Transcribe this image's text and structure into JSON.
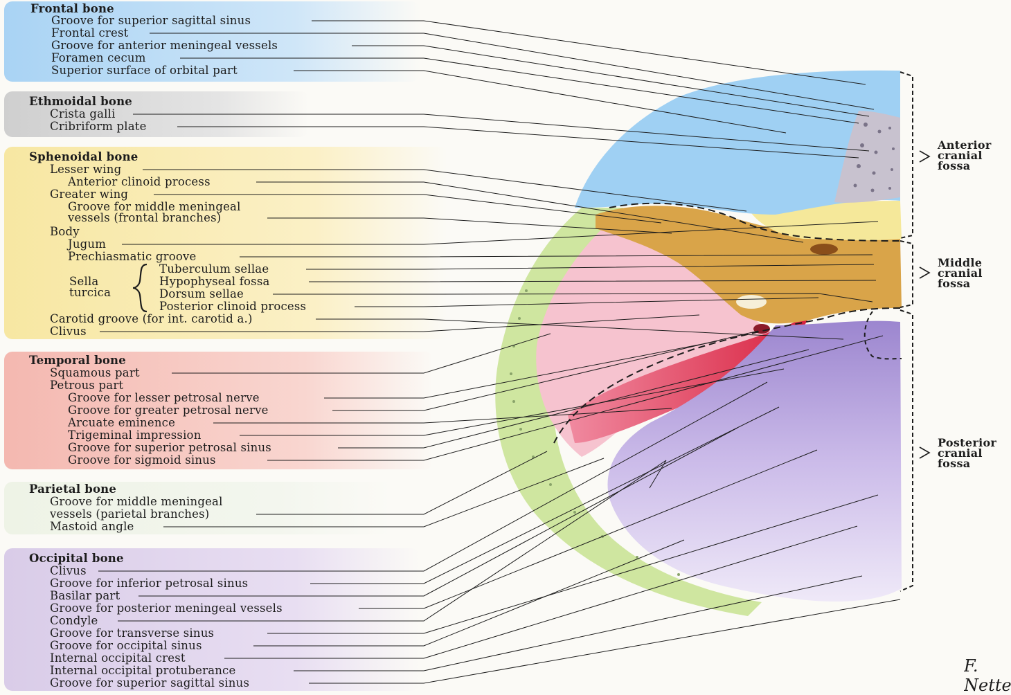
{
  "groups": {
    "frontal": {
      "title": "Frontal bone",
      "items": [
        "Groove for superior sagittal sinus",
        "Frontal crest",
        "Groove for anterior meningeal vessels",
        "Foramen cecum",
        "Superior surface of orbital part"
      ]
    },
    "ethmoidal": {
      "title": "Ethmoidal bone",
      "items": [
        "Crista galli",
        "Cribriform plate"
      ]
    },
    "sphenoidal": {
      "title": "Sphenoidal bone",
      "items": [
        "Lesser wing",
        "Anterior clinoid process",
        "Greater wing",
        "Groove for middle meningeal",
        "vessels (frontal branches)",
        "Body",
        "Jugum",
        "Prechiasmatic groove",
        "Carotid groove (for int. carotid a.)",
        "Clivus"
      ],
      "sella_label_1": "Sella",
      "sella_label_2": "turcica",
      "sella_items": [
        "Tuberculum sellae",
        "Hypophyseal fossa",
        "Dorsum sellae",
        "Posterior clinoid process"
      ]
    },
    "temporal": {
      "title": "Temporal bone",
      "items": [
        "Squamous part",
        "Petrous part",
        "Groove for lesser petrosal nerve",
        "Groove for greater petrosal nerve",
        "Arcuate eminence",
        "Trigeminal impression",
        "Groove for superior petrosal sinus",
        "Groove for sigmoid sinus"
      ]
    },
    "parietal": {
      "title": "Parietal bone",
      "items": [
        "Groove for middle meningeal",
        "vessels (parietal branches)",
        "Mastoid angle"
      ]
    },
    "occipital": {
      "title": "Occipital bone",
      "items": [
        "Clivus",
        "Groove for inferior petrosal sinus",
        "Basilar part",
        "Groove for posterior meningeal vessels",
        "Condyle",
        "Groove for transverse sinus",
        "Groove for occipital sinus",
        "Internal occipital crest",
        "Internal occipital protuberance",
        "Groove for superior sagittal sinus"
      ]
    }
  },
  "fossae": {
    "anterior": [
      "Anterior",
      "cranial",
      "fossa"
    ],
    "middle": [
      "Middle",
      "cranial",
      "fossa"
    ],
    "posterior": [
      "Posterior",
      "cranial",
      "fossa"
    ]
  },
  "signature": "F. Netter",
  "colors": {
    "frontal": "#8ec8f2",
    "ethmoidal": "#b9b2c4",
    "sphenoidal": "#e0b04e",
    "temporal": "#f2b8c6",
    "parietal": "#cfe6a0",
    "occipital": "#cbb8e6",
    "leader": "#1c1c1c"
  }
}
